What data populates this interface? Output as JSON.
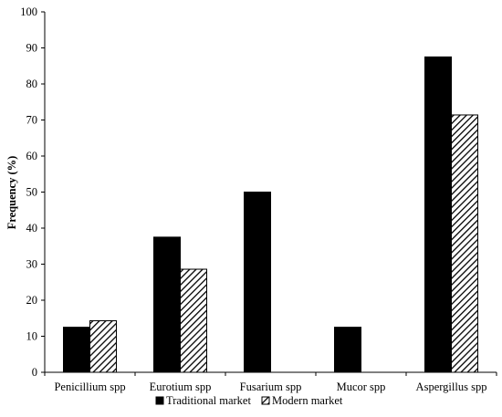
{
  "chart_data": {
    "type": "bar",
    "categories": [
      "Penicillium spp",
      "Eurotium spp",
      "Fusarium spp",
      "Mucor spp",
      "Aspergillus spp"
    ],
    "series": [
      {
        "name": "Traditional market",
        "values": [
          12.5,
          37.5,
          50,
          12.5,
          87.5
        ],
        "fill": "solid",
        "color": "#000000"
      },
      {
        "name": "Modern market",
        "values": [
          14.3,
          28.6,
          0,
          0,
          71.4
        ],
        "fill": "diagonal-hatch",
        "color": "#000000"
      }
    ],
    "title": "",
    "xlabel": "",
    "ylabel": "Frequency (%)",
    "ylim": [
      0,
      100
    ],
    "yticks": [
      0,
      10,
      20,
      30,
      40,
      50,
      60,
      70,
      80,
      90,
      100
    ],
    "grid": false,
    "legend_position": "bottom"
  }
}
